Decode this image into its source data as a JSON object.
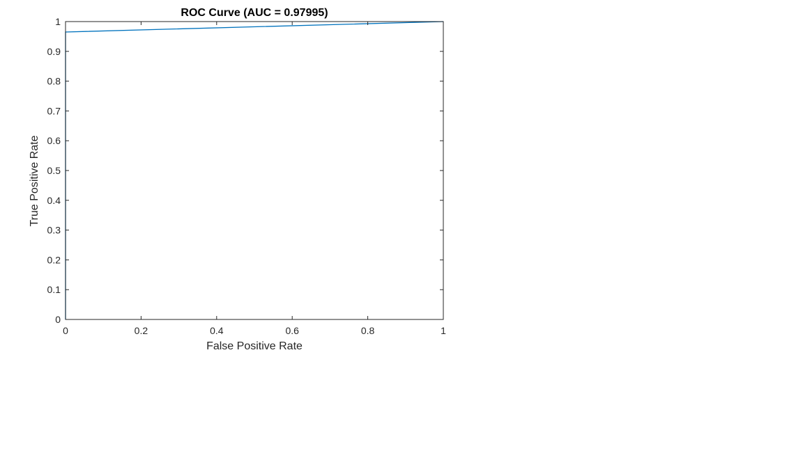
{
  "chart_data": {
    "type": "line",
    "title": "ROC Curve (AUC = 0.97995)",
    "xlabel": "False Positive Rate",
    "ylabel": "True Positive Rate",
    "xlim": [
      0,
      1
    ],
    "ylim": [
      0,
      1
    ],
    "xticks": [
      0,
      0.2,
      0.4,
      0.6,
      0.8,
      1
    ],
    "xtick_labels": [
      "0",
      "0.2",
      "0.4",
      "0.6",
      "0.8",
      "1"
    ],
    "yticks": [
      0,
      0.1,
      0.2,
      0.3,
      0.4,
      0.5,
      0.6,
      0.7,
      0.8,
      0.9,
      1
    ],
    "ytick_labels": [
      "0",
      "0.1",
      "0.2",
      "0.3",
      "0.4",
      "0.5",
      "0.6",
      "0.7",
      "0.8",
      "0.9",
      "1"
    ],
    "grid": false,
    "box": true,
    "series": [
      {
        "color": "#0072BD",
        "x": [
          0,
          0,
          1
        ],
        "y": [
          0,
          0.965,
          1
        ]
      }
    ]
  }
}
